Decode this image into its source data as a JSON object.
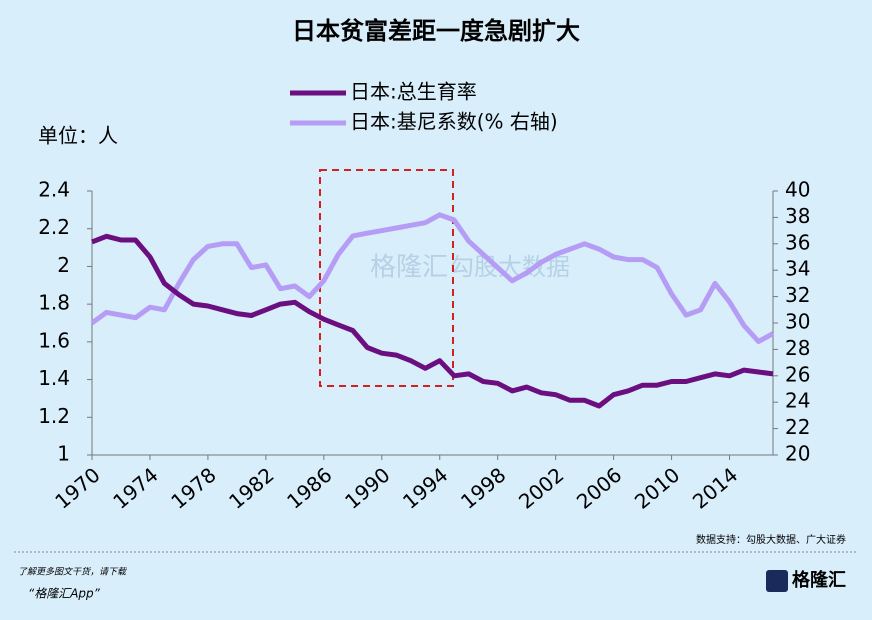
{
  "chart_data": {
    "type": "line",
    "title": "日本贫富差距一度急剧扩大",
    "unit_label": "单位：人",
    "source": "数据支持：勾股大数据、广大证券",
    "watermark": [
      "格隆汇",
      "勾股大数据"
    ],
    "x": [
      1970,
      1971,
      1972,
      1973,
      1974,
      1975,
      1976,
      1977,
      1978,
      1979,
      1980,
      1981,
      1982,
      1983,
      1984,
      1985,
      1986,
      1987,
      1988,
      1989,
      1990,
      1991,
      1992,
      1993,
      1994,
      1995,
      1996,
      1997,
      1998,
      1999,
      2000,
      2001,
      2002,
      2003,
      2004,
      2005,
      2006,
      2007,
      2008,
      2009,
      2010,
      2011,
      2012,
      2013,
      2014,
      2015,
      2016,
      2017
    ],
    "xlim": [
      1970,
      2017
    ],
    "xticks": [
      1970,
      1974,
      1978,
      1982,
      1986,
      1990,
      1994,
      1998,
      2002,
      2006,
      2010,
      2014
    ],
    "ylim": [
      1,
      2.4
    ],
    "yticks": [
      1,
      1.2,
      1.4,
      1.6,
      1.8,
      2,
      2.2,
      2.4
    ],
    "y2lim": [
      20,
      40
    ],
    "y2ticks": [
      20,
      22,
      24,
      26,
      28,
      30,
      32,
      34,
      36,
      38,
      40
    ],
    "series": [
      {
        "name": "日本:总生育率",
        "color": "#6b0f80",
        "values": [
          2.13,
          2.16,
          2.14,
          2.14,
          2.05,
          1.91,
          1.85,
          1.8,
          1.79,
          1.77,
          1.75,
          1.74,
          1.77,
          1.8,
          1.81,
          1.76,
          1.72,
          1.69,
          1.66,
          1.57,
          1.54,
          1.53,
          1.5,
          1.46,
          1.5,
          1.42,
          1.43,
          1.39,
          1.38,
          1.34,
          1.36,
          1.33,
          1.32,
          1.29,
          1.29,
          1.26,
          1.32,
          1.34,
          1.37,
          1.37,
          1.39,
          1.39,
          1.41,
          1.43,
          1.42,
          1.45,
          1.44,
          1.43
        ]
      },
      {
        "name": "日本:基尼系数(% 右轴)",
        "color": "#b59cf5",
        "axis": "y2",
        "values": [
          30,
          30.8,
          30.6,
          30.4,
          31.2,
          31,
          33,
          34.8,
          35.8,
          36,
          36,
          34.2,
          34.4,
          32.6,
          32.8,
          32,
          33.2,
          35.2,
          36.6,
          36.8,
          37,
          37.2,
          37.4,
          37.6,
          38.2,
          37.8,
          36.2,
          35.2,
          34.2,
          33.2,
          33.8,
          34.6,
          35.2,
          35.6,
          36,
          35.6,
          35,
          34.8,
          34.8,
          34.2,
          32.2,
          30.6,
          31,
          33,
          31.6,
          29.8,
          28.6,
          29.2
        ]
      }
    ]
  },
  "footer": {
    "line1": "了解更多图文干货，请下载",
    "line2": "“格隆汇App”",
    "logo": "格隆汇"
  }
}
